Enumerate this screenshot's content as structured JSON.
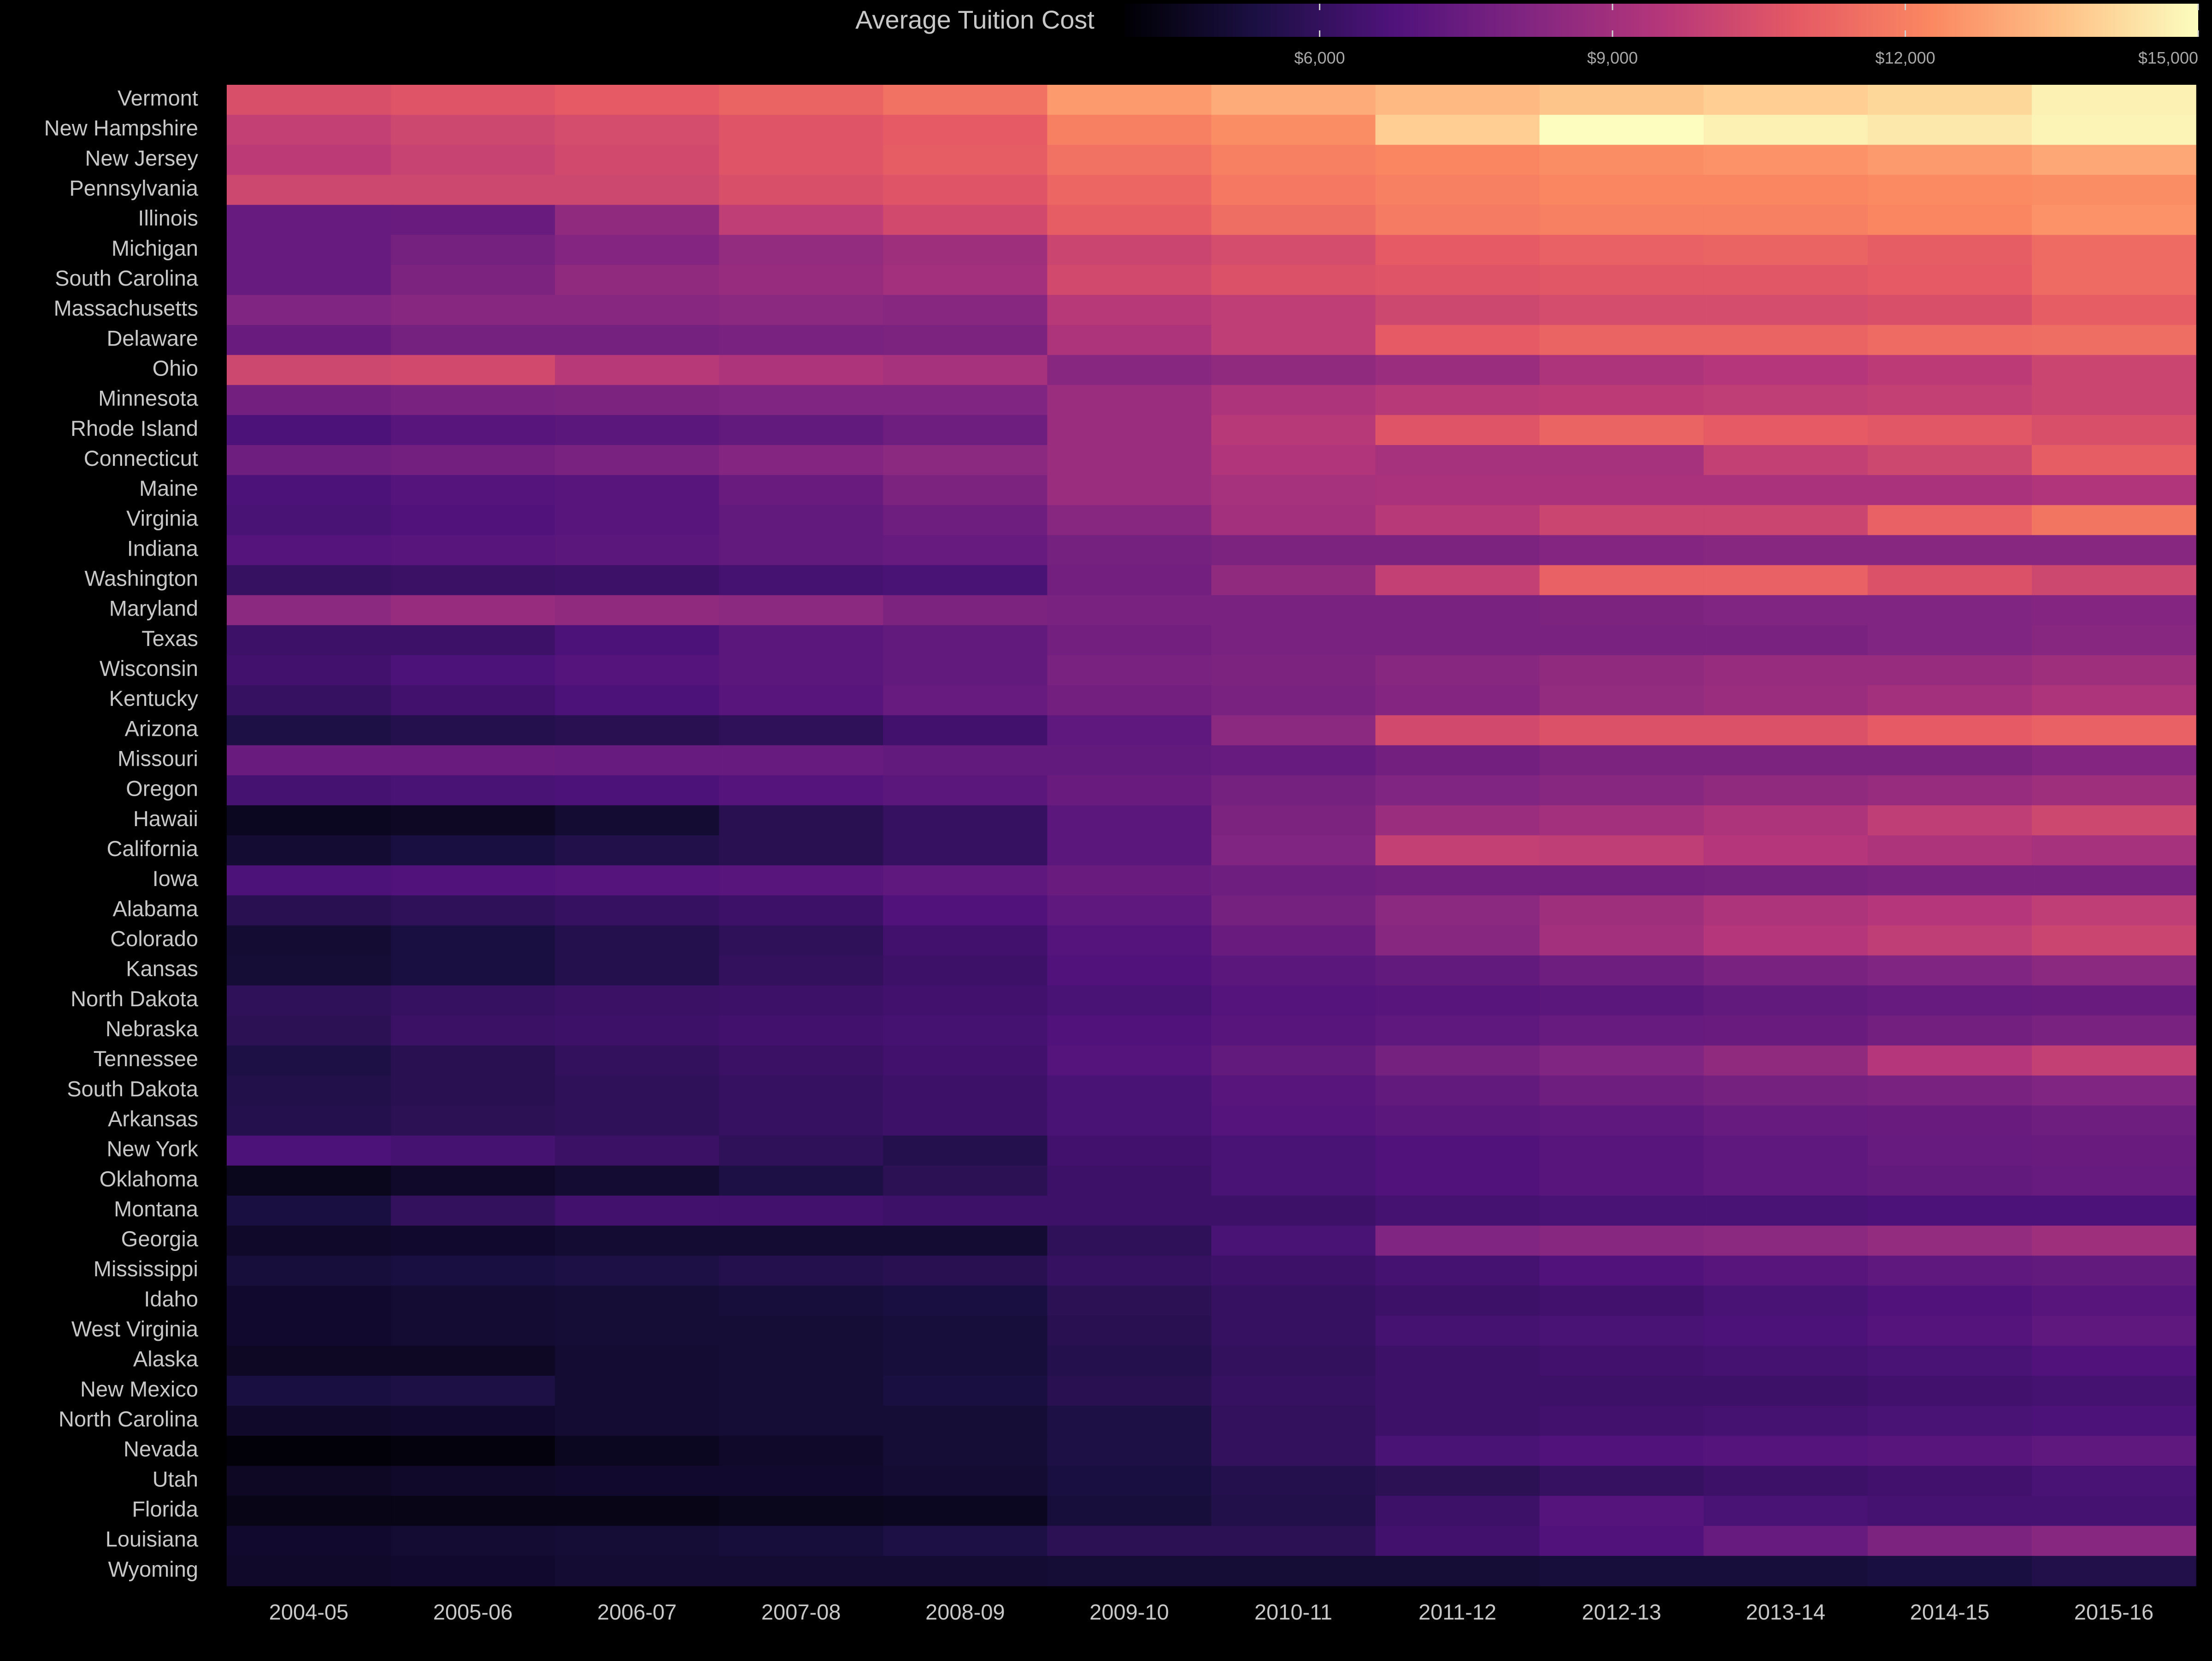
{
  "colors": {
    "background": "#000000",
    "text": "#c8c8c8",
    "legend_text": "#a8a8a8",
    "scale": [
      "#000004",
      "#1c1044",
      "#4f127b",
      "#812581",
      "#b5367a",
      "#e55964",
      "#fb8761",
      "#fec287",
      "#fcfdbf"
    ]
  },
  "chart_data": {
    "type": "heatmap",
    "title": "",
    "xlabel": "",
    "ylabel": "",
    "colorbar_label": "Average Tuition Cost",
    "colorbar_range": [
      4000,
      15000
    ],
    "colorbar_ticks": [
      {
        "value": 6000,
        "label": "$6,000"
      },
      {
        "value": 9000,
        "label": "$9,000"
      },
      {
        "value": 12000,
        "label": "$12,000"
      },
      {
        "value": 15000,
        "label": "$15,000"
      }
    ],
    "x": [
      "2004-05",
      "2005-06",
      "2006-07",
      "2007-08",
      "2008-09",
      "2009-10",
      "2010-11",
      "2011-12",
      "2012-13",
      "2013-14",
      "2014-15",
      "2015-16"
    ],
    "y": [
      "Vermont",
      "New Hampshire",
      "New Jersey",
      "Pennsylvania",
      "Illinois",
      "Michigan",
      "South Carolina",
      "Massachusetts",
      "Delaware",
      "Ohio",
      "Minnesota",
      "Rhode Island",
      "Connecticut",
      "Maine",
      "Virginia",
      "Indiana",
      "Washington",
      "Maryland",
      "Texas",
      "Wisconsin",
      "Kentucky",
      "Arizona",
      "Missouri",
      "Oregon",
      "Hawaii",
      "California",
      "Iowa",
      "Alabama",
      "Colorado",
      "Kansas",
      "North Dakota",
      "Nebraska",
      "Tennessee",
      "South Dakota",
      "Arkansas",
      "New York",
      "Oklahoma",
      "Montana",
      "Georgia",
      "Mississippi",
      "Idaho",
      "West Virginia",
      "Alaska",
      "New Mexico",
      "North Carolina",
      "Nevada",
      "Utah",
      "Florida",
      "Louisiana",
      "Wyoming"
    ],
    "values": [
      [
        10500,
        10700,
        10900,
        11200,
        11600,
        12700,
        13100,
        13400,
        13700,
        13900,
        14100,
        14700
      ],
      [
        9900,
        10200,
        10400,
        10700,
        10900,
        12000,
        12400,
        13900,
        15000,
        14700,
        14500,
        14800
      ],
      [
        9700,
        10000,
        10300,
        10700,
        11000,
        11600,
        12000,
        12200,
        12400,
        12500,
        12700,
        13000
      ],
      [
        10200,
        10200,
        10200,
        10500,
        10700,
        11300,
        11800,
        12000,
        12200,
        12200,
        12300,
        12400
      ],
      [
        7400,
        7500,
        8500,
        9800,
        10300,
        11000,
        11500,
        11900,
        12000,
        12000,
        12200,
        12500
      ],
      [
        7400,
        7800,
        8200,
        8600,
        8900,
        10100,
        10400,
        10900,
        11100,
        11200,
        11000,
        11400
      ],
      [
        7400,
        8000,
        8500,
        8700,
        9000,
        10300,
        10600,
        10700,
        10800,
        10800,
        10900,
        11400
      ],
      [
        8100,
        8300,
        8300,
        8400,
        8300,
        9600,
        9800,
        10200,
        10400,
        10400,
        10500,
        11000
      ],
      [
        7500,
        7800,
        7800,
        7900,
        8000,
        9300,
        9800,
        10900,
        11200,
        11200,
        11400,
        11500
      ],
      [
        10200,
        10300,
        9600,
        9300,
        9100,
        8300,
        8500,
        8800,
        9300,
        9500,
        9700,
        10100
      ],
      [
        7700,
        7900,
        8000,
        8100,
        8100,
        8800,
        9300,
        9600,
        9700,
        9800,
        9900,
        10100
      ],
      [
        6700,
        7000,
        7100,
        7300,
        7600,
        8800,
        9600,
        10700,
        11200,
        10900,
        10800,
        10500
      ],
      [
        7600,
        7700,
        7900,
        8200,
        8400,
        8800,
        9400,
        9100,
        9100,
        9900,
        10200,
        11000
      ],
      [
        6700,
        6900,
        7000,
        7500,
        8000,
        8800,
        9100,
        9200,
        9200,
        9200,
        9200,
        9400
      ],
      [
        6600,
        6800,
        7000,
        7300,
        7600,
        8300,
        9000,
        9600,
        10100,
        10100,
        11100,
        11700
      ],
      [
        6900,
        7000,
        7100,
        7300,
        7400,
        7800,
        8000,
        8000,
        8200,
        8300,
        8300,
        8300
      ],
      [
        6100,
        6200,
        6300,
        6500,
        6600,
        7700,
        8500,
        9900,
        11100,
        11100,
        10600,
        10200
      ],
      [
        8400,
        8700,
        8500,
        8400,
        8000,
        7900,
        7900,
        7900,
        8000,
        8100,
        8100,
        8200
      ],
      [
        6300,
        6300,
        6700,
        7100,
        7300,
        7700,
        7900,
        7900,
        7900,
        7900,
        8100,
        8300
      ],
      [
        6400,
        6700,
        6900,
        7100,
        7300,
        7900,
        8000,
        8300,
        8500,
        8700,
        8700,
        8900
      ],
      [
        6100,
        6400,
        6700,
        7000,
        7400,
        7700,
        7900,
        8200,
        8600,
        8800,
        9000,
        9300
      ],
      [
        5400,
        5600,
        5700,
        5900,
        6400,
        7200,
        8400,
        10300,
        10600,
        10600,
        10900,
        11100
      ],
      [
        7500,
        7500,
        7400,
        7400,
        7300,
        7300,
        7400,
        7700,
        8000,
        8000,
        8000,
        8200
      ],
      [
        6500,
        6600,
        6700,
        6900,
        7100,
        7500,
        7800,
        8100,
        8300,
        8500,
        8700,
        8900
      ],
      [
        4600,
        4700,
        5000,
        5700,
        6100,
        7100,
        8000,
        8800,
        9000,
        9300,
        9800,
        10200
      ],
      [
        5000,
        5300,
        5500,
        5700,
        6100,
        7100,
        8100,
        9900,
        9800,
        9500,
        9300,
        9100
      ],
      [
        6700,
        6800,
        6900,
        7000,
        7200,
        7500,
        7600,
        7700,
        7700,
        7800,
        7900,
        7900
      ],
      [
        5700,
        5900,
        6100,
        6300,
        6800,
        7200,
        7800,
        8400,
        8900,
        9300,
        9500,
        9800
      ],
      [
        5000,
        5300,
        5600,
        5900,
        6400,
        6900,
        7500,
        8300,
        9000,
        9500,
        9800,
        10100
      ],
      [
        5100,
        5300,
        5600,
        6000,
        6300,
        6800,
        7100,
        7300,
        7600,
        7900,
        8100,
        8400
      ],
      [
        5900,
        6100,
        6200,
        6300,
        6400,
        6600,
        6900,
        7000,
        7100,
        7300,
        7400,
        7500
      ],
      [
        5800,
        6200,
        6300,
        6400,
        6500,
        6800,
        7000,
        7200,
        7400,
        7500,
        7700,
        7900
      ],
      [
        5400,
        5700,
        6000,
        6200,
        6400,
        6900,
        7300,
        7800,
        8100,
        8500,
        9500,
        9900
      ],
      [
        5500,
        5700,
        5900,
        6100,
        6300,
        6600,
        7000,
        7300,
        7600,
        7800,
        7900,
        8100
      ],
      [
        5600,
        5800,
        5900,
        6100,
        6300,
        6600,
        6900,
        7100,
        7200,
        7400,
        7500,
        7600
      ],
      [
        6700,
        6500,
        6200,
        5900,
        5600,
        6400,
        6600,
        6800,
        7000,
        7200,
        7400,
        7500
      ],
      [
        4500,
        4800,
        5000,
        5400,
        5800,
        6300,
        6600,
        6800,
        7000,
        7200,
        7300,
        7400
      ],
      [
        5300,
        6000,
        6400,
        6400,
        6300,
        6300,
        6300,
        6500,
        6600,
        6600,
        6700,
        6700
      ],
      [
        4800,
        4900,
        5000,
        5000,
        5000,
        5900,
        6600,
        8100,
        8300,
        8400,
        8600,
        8900
      ],
      [
        5200,
        5300,
        5400,
        5600,
        5700,
        6100,
        6300,
        6500,
        6800,
        7000,
        7200,
        7300
      ],
      [
        4900,
        5000,
        5100,
        5200,
        5300,
        5800,
        6100,
        6300,
        6400,
        6600,
        6800,
        7000
      ],
      [
        4900,
        5000,
        5100,
        5100,
        5200,
        5700,
        6100,
        6500,
        6600,
        6700,
        6900,
        7200
      ],
      [
        4700,
        4700,
        5000,
        5100,
        5200,
        5600,
        6000,
        6300,
        6400,
        6500,
        6600,
        6800
      ],
      [
        5300,
        5400,
        5000,
        5100,
        5300,
        5700,
        6100,
        6300,
        6300,
        6300,
        6400,
        6500
      ],
      [
        4800,
        4900,
        5000,
        5100,
        5100,
        5400,
        6000,
        6300,
        6400,
        6500,
        6600,
        6700
      ],
      [
        4100,
        4200,
        4600,
        4800,
        5100,
        5400,
        6000,
        6600,
        6800,
        6900,
        7000,
        7200
      ],
      [
        4700,
        4800,
        4900,
        4900,
        5000,
        5300,
        5600,
        5800,
        6100,
        6300,
        6400,
        6600
      ],
      [
        4400,
        4400,
        4400,
        4500,
        4600,
        5200,
        5500,
        6300,
        6900,
        6600,
        6500,
        6500
      ],
      [
        4900,
        5000,
        5100,
        5200,
        5400,
        5800,
        5800,
        6400,
        6800,
        7400,
        8000,
        8300
      ],
      [
        4800,
        4900,
        5000,
        5000,
        5000,
        5100,
        5100,
        5100,
        5200,
        5200,
        5300,
        5500
      ]
    ]
  }
}
